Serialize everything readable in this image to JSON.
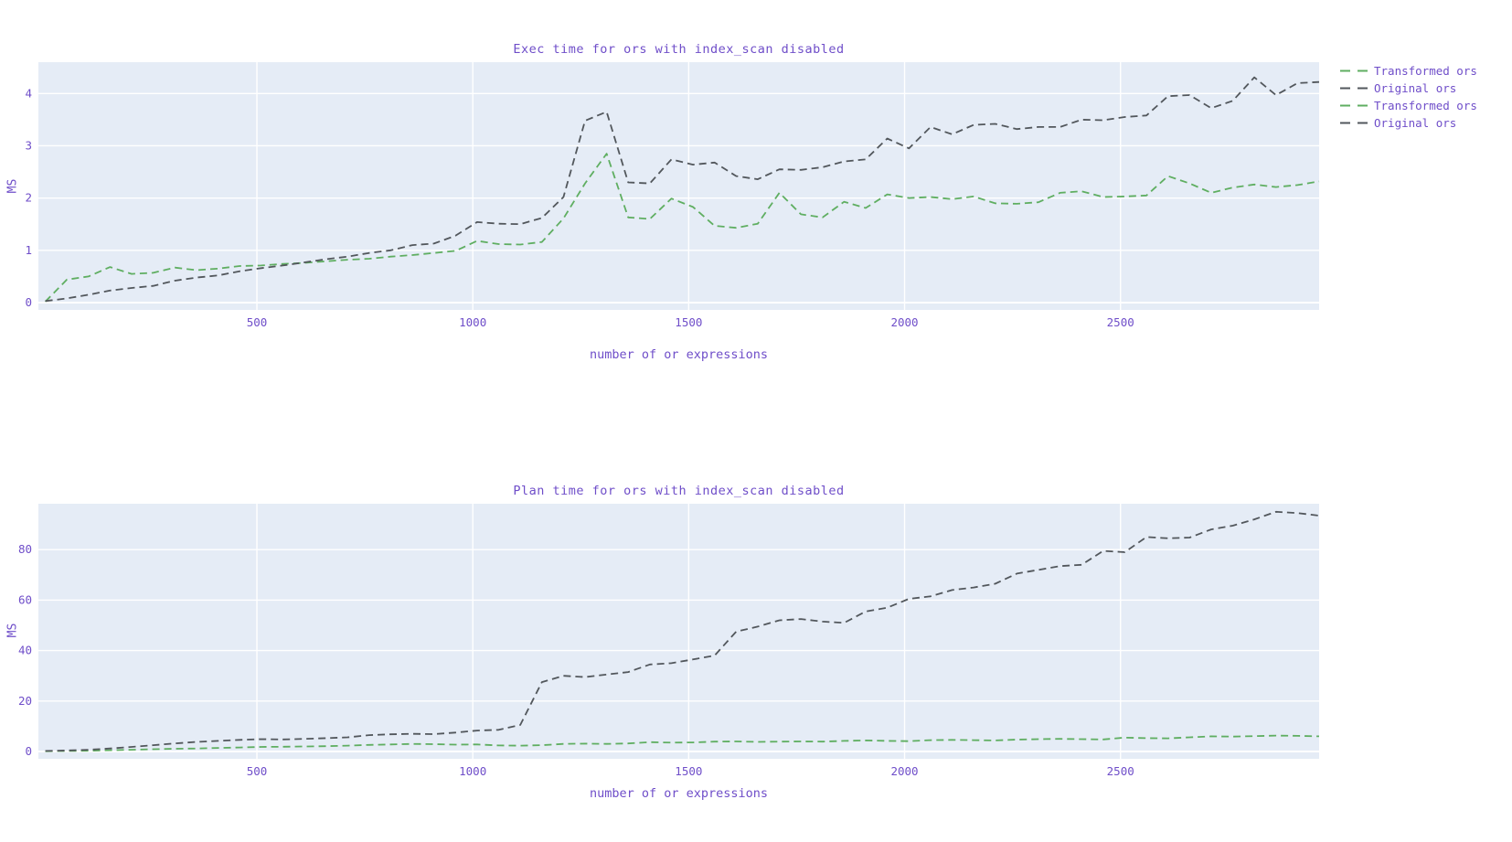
{
  "style": {
    "page_bg": "#ffffff",
    "plot_bg": "#e5ecf6",
    "grid_color": "#ffffff",
    "text_color": "#6f4ec9",
    "green": "#5fae61",
    "gray": "#52575c",
    "dash_pattern": "8 5"
  },
  "legend": {
    "position": "top-right-outside",
    "items": [
      {
        "label": "Transformed ors",
        "color": "#5fae61"
      },
      {
        "label": "Original ors",
        "color": "#52575c"
      },
      {
        "label": "Transformed ors",
        "color": "#5fae61"
      },
      {
        "label": "Original ors",
        "color": "#52575c"
      }
    ]
  },
  "chart_data": [
    {
      "type": "line",
      "title": "Exec time for ors with index_scan disabled",
      "xlabel": "number of or expressions",
      "ylabel": "MS",
      "line_style": "dashed",
      "grid": true,
      "x_ticks": [
        500,
        1000,
        1500,
        2000,
        2500
      ],
      "y_ticks": [
        0,
        1,
        2,
        3,
        4
      ],
      "xlim": [
        -6,
        2960
      ],
      "ylim": [
        -0.14,
        4.6
      ],
      "x": [
        10,
        60,
        110,
        160,
        210,
        260,
        310,
        360,
        410,
        460,
        510,
        560,
        610,
        660,
        710,
        760,
        810,
        860,
        910,
        960,
        1010,
        1060,
        1110,
        1160,
        1210,
        1260,
        1310,
        1360,
        1410,
        1460,
        1510,
        1560,
        1610,
        1660,
        1710,
        1760,
        1810,
        1860,
        1910,
        1960,
        2010,
        2060,
        2110,
        2160,
        2210,
        2260,
        2310,
        2360,
        2410,
        2460,
        2510,
        2560,
        2610,
        2660,
        2710,
        2760,
        2810,
        2860,
        2910,
        2960
      ],
      "series": [
        {
          "name": "Transformed ors",
          "color": "#5fae61",
          "values": [
            0.02,
            0.44,
            0.5,
            0.68,
            0.55,
            0.57,
            0.67,
            0.62,
            0.65,
            0.7,
            0.71,
            0.74,
            0.76,
            0.79,
            0.82,
            0.84,
            0.88,
            0.91,
            0.95,
            0.99,
            1.18,
            1.12,
            1.11,
            1.16,
            1.61,
            2.28,
            2.85,
            1.63,
            1.6,
            1.99,
            1.83,
            1.47,
            1.43,
            1.51,
            2.1,
            1.69,
            1.63,
            1.93,
            1.81,
            2.07,
            2.0,
            2.02,
            1.98,
            2.03,
            1.9,
            1.89,
            1.92,
            2.1,
            2.13,
            2.02,
            2.03,
            2.05,
            2.42,
            2.28,
            2.1,
            2.2,
            2.26,
            2.21,
            2.25,
            2.32
          ]
        },
        {
          "name": "Original ors",
          "color": "#52575c",
          "values": [
            0.03,
            0.08,
            0.15,
            0.23,
            0.28,
            0.32,
            0.42,
            0.48,
            0.52,
            0.6,
            0.66,
            0.71,
            0.77,
            0.83,
            0.88,
            0.95,
            1.0,
            1.1,
            1.13,
            1.28,
            1.54,
            1.51,
            1.5,
            1.62,
            2.02,
            3.48,
            3.65,
            2.3,
            2.28,
            2.74,
            2.64,
            2.68,
            2.42,
            2.36,
            2.55,
            2.54,
            2.59,
            2.7,
            2.74,
            3.14,
            2.95,
            3.36,
            3.22,
            3.4,
            3.42,
            3.32,
            3.36,
            3.36,
            3.5,
            3.49,
            3.55,
            3.58,
            3.95,
            3.97,
            3.72,
            3.86,
            4.31,
            3.97,
            4.2,
            4.22
          ]
        }
      ]
    },
    {
      "type": "line",
      "title": "Plan time for ors with index_scan disabled",
      "xlabel": "number of or expressions",
      "ylabel": "MS",
      "line_style": "dashed",
      "grid": true,
      "x_ticks": [
        500,
        1000,
        1500,
        2000,
        2500
      ],
      "y_ticks": [
        0,
        20,
        40,
        60,
        80
      ],
      "xlim": [
        -6,
        2960
      ],
      "ylim": [
        -2.9,
        98.2
      ],
      "x": [
        10,
        60,
        110,
        160,
        210,
        260,
        310,
        360,
        410,
        460,
        510,
        560,
        610,
        660,
        710,
        760,
        810,
        860,
        910,
        960,
        1010,
        1060,
        1110,
        1160,
        1210,
        1260,
        1310,
        1360,
        1410,
        1460,
        1510,
        1560,
        1610,
        1660,
        1710,
        1760,
        1810,
        1860,
        1910,
        1960,
        2010,
        2060,
        2110,
        2160,
        2210,
        2260,
        2310,
        2360,
        2410,
        2460,
        2510,
        2560,
        2610,
        2660,
        2710,
        2760,
        2810,
        2860,
        2910,
        2960
      ],
      "series": [
        {
          "name": "Transformed ors",
          "color": "#5fae61",
          "values": [
            0.1,
            0.2,
            0.3,
            0.5,
            0.7,
            0.9,
            1.1,
            1.2,
            1.4,
            1.6,
            1.8,
            1.9,
            2.0,
            2.1,
            2.3,
            2.6,
            2.8,
            3.0,
            2.9,
            2.7,
            2.8,
            2.4,
            2.3,
            2.5,
            3.0,
            3.1,
            3.0,
            3.2,
            3.7,
            3.5,
            3.6,
            3.9,
            4.0,
            3.8,
            3.9,
            4.0,
            3.9,
            4.2,
            4.4,
            4.2,
            4.1,
            4.5,
            4.6,
            4.5,
            4.4,
            4.7,
            4.9,
            5.0,
            4.9,
            4.8,
            5.5,
            5.3,
            5.2,
            5.6,
            6.0,
            5.9,
            6.1,
            6.3,
            6.2,
            6.0
          ]
        },
        {
          "name": "Original ors",
          "color": "#52575c",
          "values": [
            0.2,
            0.4,
            0.7,
            1.2,
            1.8,
            2.5,
            3.2,
            3.8,
            4.2,
            4.6,
            4.9,
            4.8,
            5.0,
            5.3,
            5.6,
            6.5,
            6.8,
            7.0,
            6.9,
            7.5,
            8.3,
            8.6,
            10.5,
            27.5,
            30.0,
            29.5,
            30.5,
            31.5,
            34.5,
            35.0,
            36.5,
            38.0,
            47.5,
            49.5,
            52.0,
            52.5,
            51.5,
            51.0,
            55.5,
            57.0,
            60.5,
            61.5,
            64.0,
            65.0,
            66.5,
            70.5,
            72.0,
            73.5,
            74.0,
            79.5,
            79.0,
            85.0,
            84.5,
            84.8,
            88.0,
            89.5,
            92.0,
            95.0,
            94.5,
            93.5
          ]
        }
      ]
    }
  ]
}
